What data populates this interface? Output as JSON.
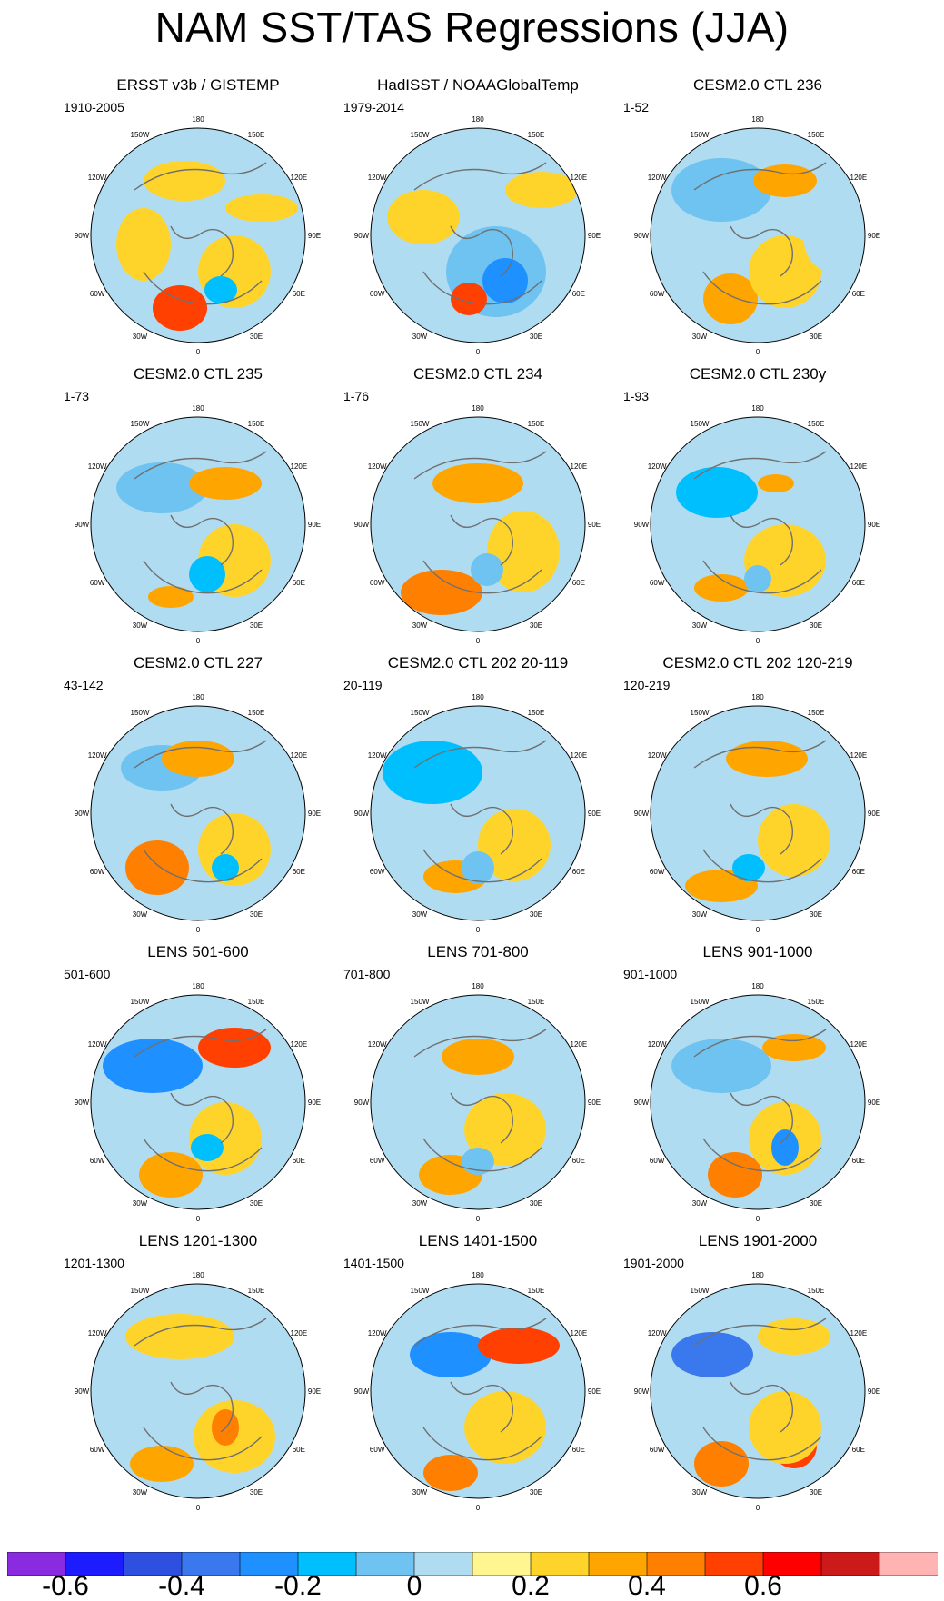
{
  "title": "NAM SST/TAS Regressions (JJA)",
  "lon_labels": [
    "180",
    "150E",
    "120E",
    "90E",
    "60E",
    "30E",
    "0",
    "30W",
    "60W",
    "90W",
    "120W",
    "150W"
  ],
  "panels": [
    {
      "title": "ERSST v3b / GISTEMP",
      "range": "1910-2005"
    },
    {
      "title": "HadISST / NOAAGlobalTemp",
      "range": "1979-2014"
    },
    {
      "title": "CESM2.0 CTL 236",
      "range": "1-52"
    },
    {
      "title": "CESM2.0 CTL 235",
      "range": "1-73"
    },
    {
      "title": "CESM2.0 CTL 234",
      "range": "1-76"
    },
    {
      "title": "CESM2.0 CTL 230y",
      "range": "1-93"
    },
    {
      "title": "CESM2.0 CTL 227",
      "range": "43-142"
    },
    {
      "title": "CESM2.0 CTL 202 20-119",
      "range": "20-119"
    },
    {
      "title": "CESM2.0 CTL 202 120-219",
      "range": "120-219"
    },
    {
      "title": "LENS 501-600",
      "range": "501-600"
    },
    {
      "title": "LENS 701-800",
      "range": "701-800"
    },
    {
      "title": "LENS 901-1000",
      "range": "901-1000"
    },
    {
      "title": "LENS 1201-1300",
      "range": "1201-1300"
    },
    {
      "title": "LENS 1401-1500",
      "range": "1401-1500"
    },
    {
      "title": "LENS 1901-2000",
      "range": "1901-2000"
    }
  ],
  "colorbar": {
    "colors": [
      "#8a2be2",
      "#1c1cff",
      "#2e4fe0",
      "#3a78ee",
      "#1e90ff",
      "#00bfff",
      "#6ec3f0",
      "#b0dcf2",
      "#fff68f",
      "#ffd42a",
      "#ffa500",
      "#ff7f00",
      "#ff4000",
      "#ff0000",
      "#cc1a1a",
      "#ffb3b3"
    ],
    "labels": [
      "-0.6",
      "-0.4",
      "-0.2",
      "0",
      "0.2",
      "0.4",
      "0.6"
    ]
  }
}
